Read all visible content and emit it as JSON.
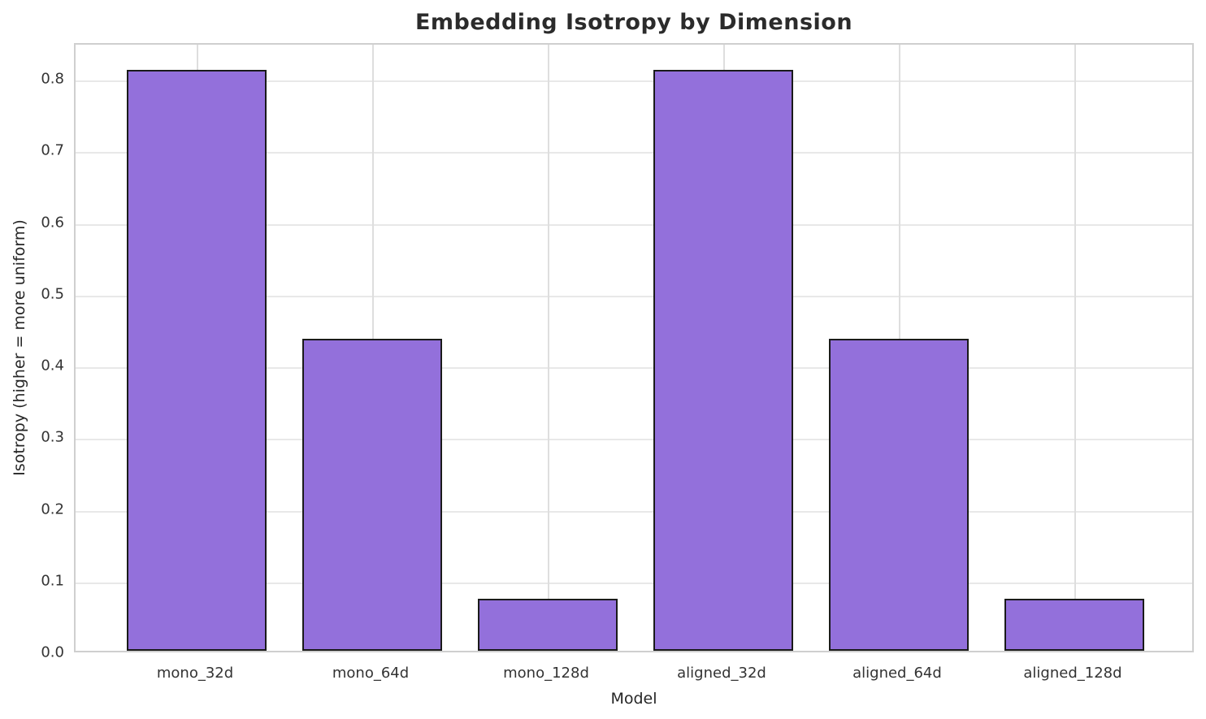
{
  "chart_data": {
    "type": "bar",
    "title": "Embedding Isotropy by Dimension",
    "xlabel": "Model",
    "ylabel": "Isotropy (higher = more uniform)",
    "categories": [
      "mono_32d",
      "mono_64d",
      "mono_128d",
      "aligned_32d",
      "aligned_64d",
      "aligned_128d"
    ],
    "values": [
      0.81,
      0.435,
      0.073,
      0.81,
      0.435,
      0.073
    ],
    "ylim": [
      0,
      0.85
    ],
    "xlim": [
      -0.69,
      5.69
    ],
    "yticks": [
      0.0,
      0.1,
      0.2,
      0.3,
      0.4,
      0.5,
      0.6,
      0.7,
      0.8
    ],
    "ytick_labels": [
      "0.0",
      "0.1",
      "0.2",
      "0.3",
      "0.4",
      "0.5",
      "0.6",
      "0.7",
      "0.8"
    ],
    "bar_width": 0.8,
    "bar_color": "#9370DB",
    "bar_edge_color": "#1a1a1a",
    "grid": true,
    "grid_color": "#e8e8e8",
    "spine_color": "#cfcfcf",
    "legend": false,
    "legend_position": "none"
  }
}
